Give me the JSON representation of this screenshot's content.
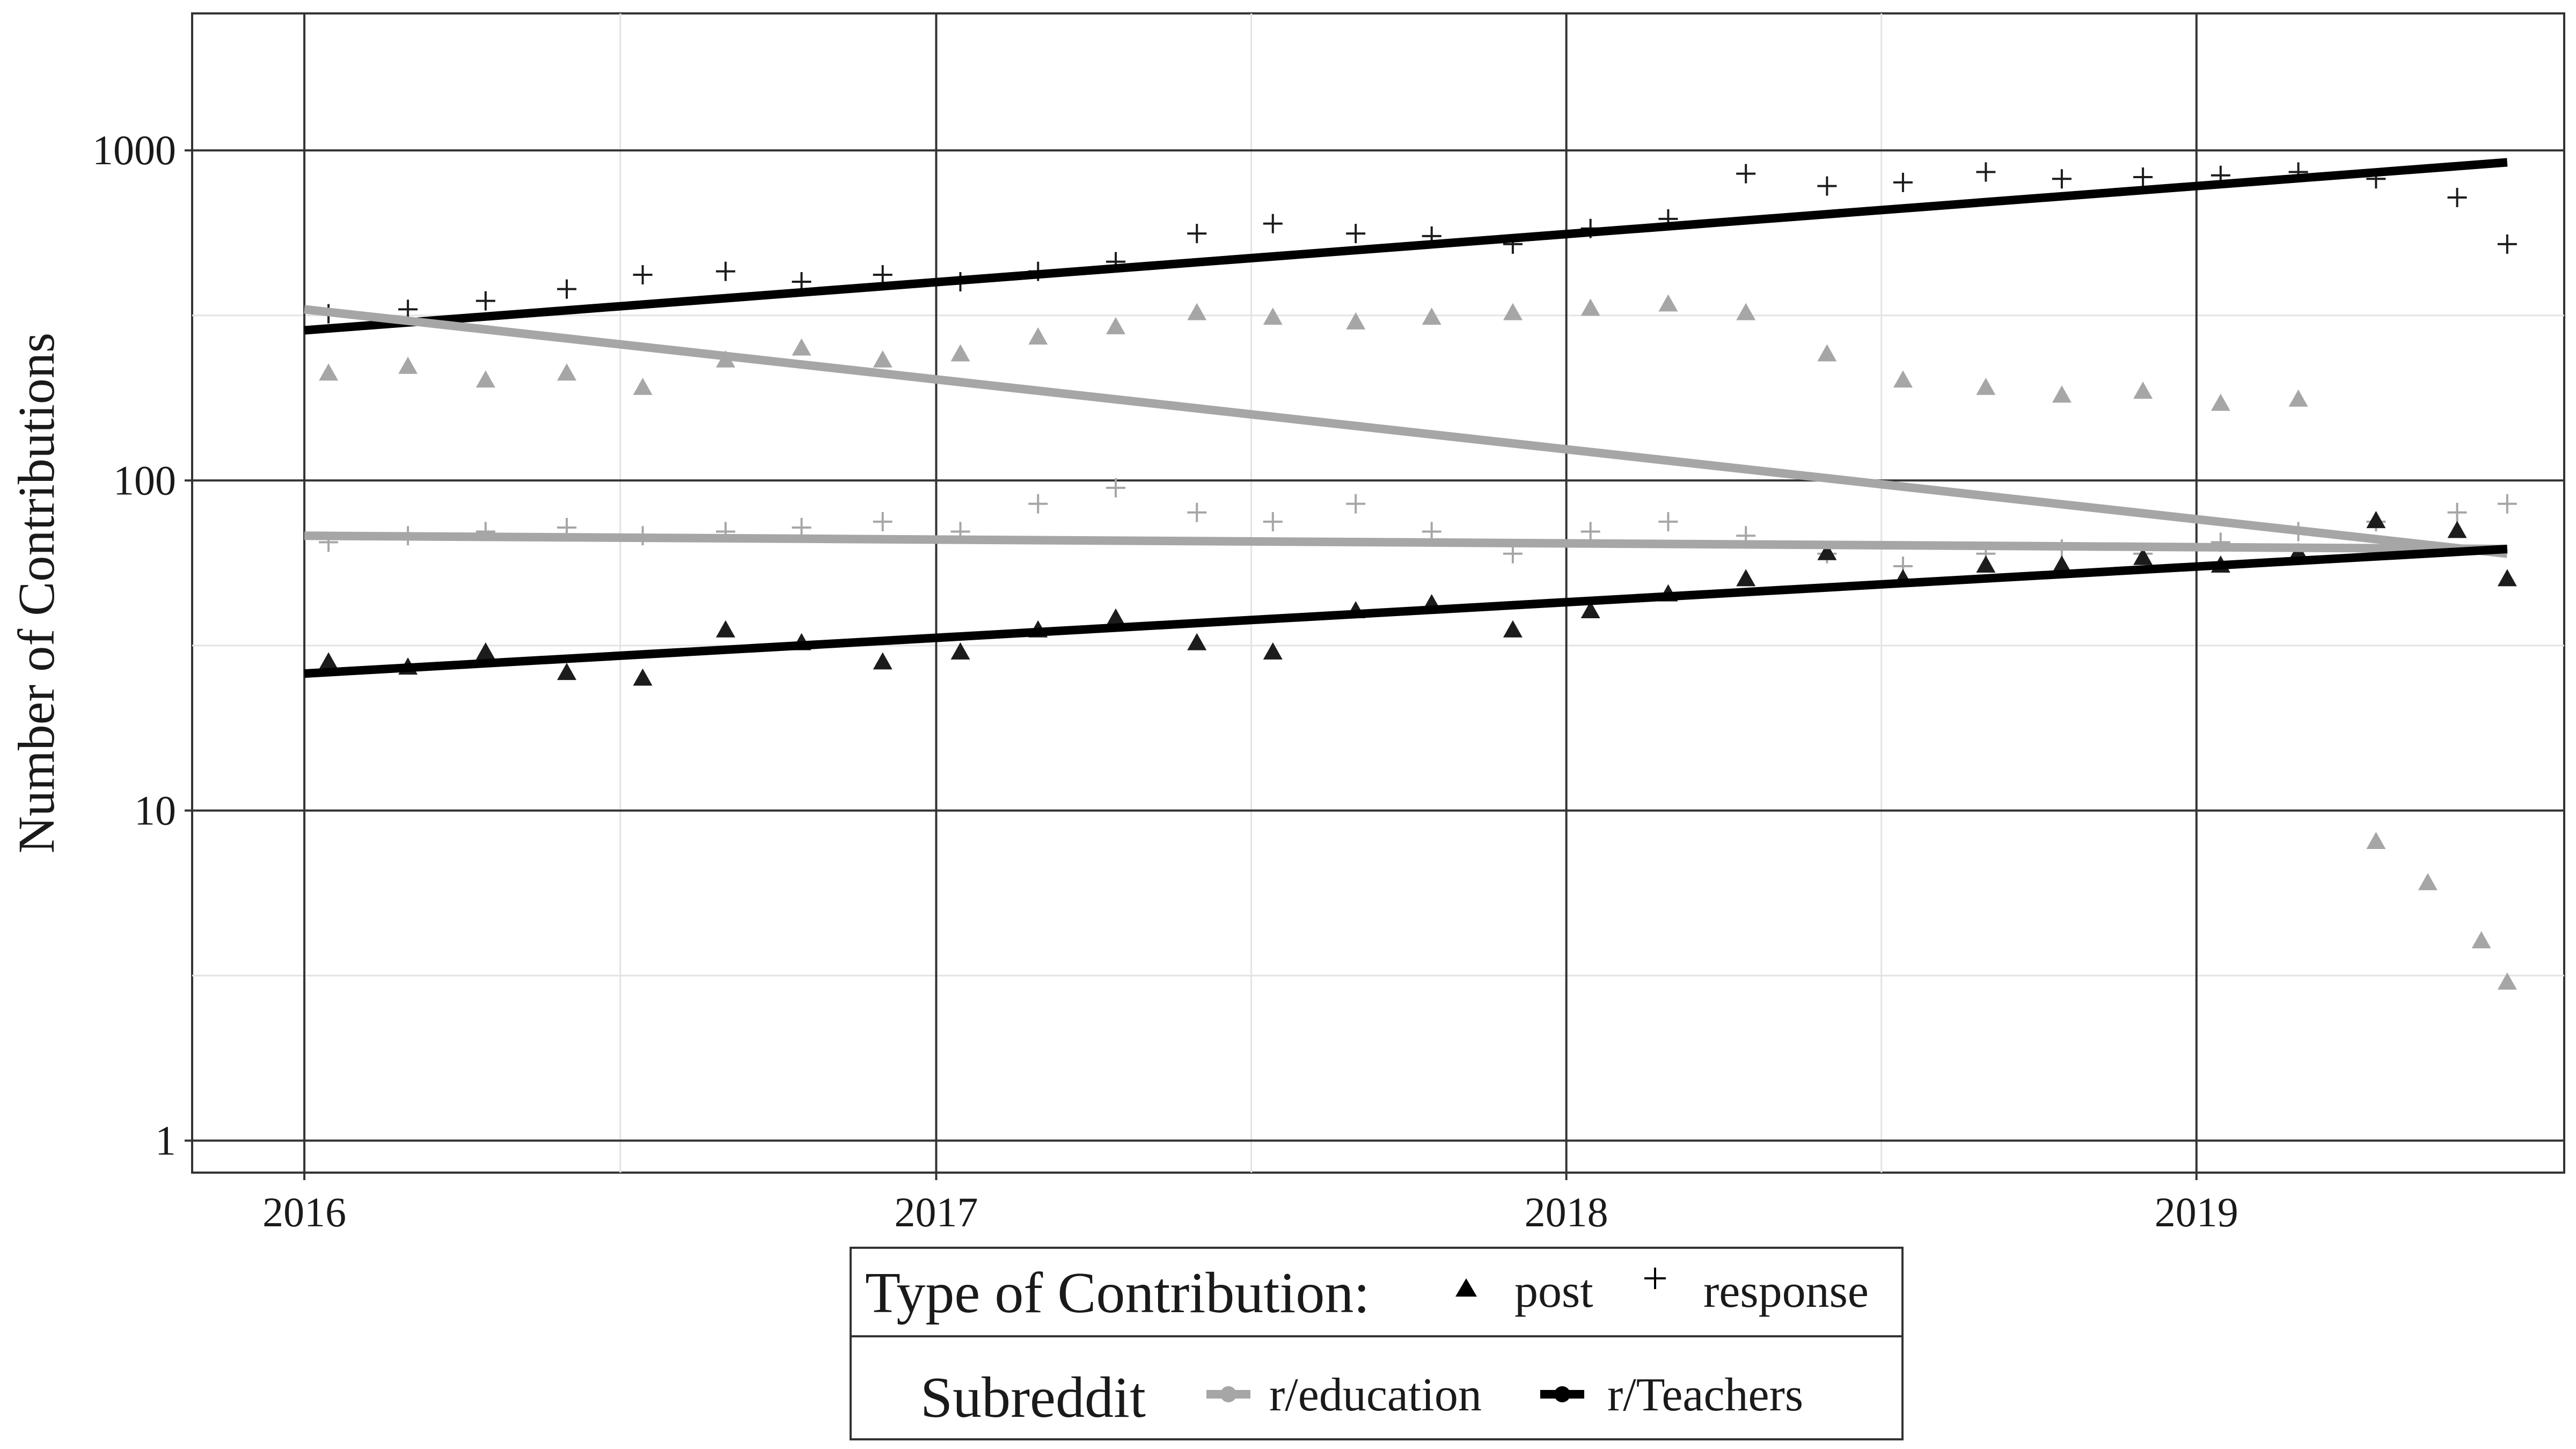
{
  "chart_data": {
    "type": "scatter",
    "title": "",
    "xlabel": "",
    "ylabel": "Number of Contributions",
    "y_scale": "log10",
    "ylim": [
      0.8,
      2600
    ],
    "xlim": [
      "2015-10-28",
      "2019-08-02"
    ],
    "grid": "on",
    "legend_position": "bottom",
    "x_ticks": [
      {
        "value": "2016-01-01",
        "label": "2016"
      },
      {
        "value": "2017-01-01",
        "label": "2017"
      },
      {
        "value": "2018-01-01",
        "label": "2018"
      },
      {
        "value": "2019-01-01",
        "label": "2019"
      }
    ],
    "y_ticks": [
      {
        "value": 1,
        "label": "1"
      },
      {
        "value": 10,
        "label": "10"
      },
      {
        "value": 100,
        "label": "100"
      },
      {
        "value": 1000,
        "label": "1000"
      }
    ],
    "legend": {
      "type_title": "Type of Contribution:",
      "type_items": [
        {
          "label": "post",
          "shape": "triangle"
        },
        {
          "label": "response",
          "shape": "plus"
        }
      ],
      "subreddit_title": "Subreddit",
      "subreddit_items": [
        {
          "label": "r/education",
          "color": "#a6a6a6"
        },
        {
          "label": "r/Teachers",
          "color": "#000000"
        }
      ]
    },
    "series": [
      {
        "name": "r/Teachers response",
        "subreddit": "r/Teachers",
        "contribution": "response",
        "shape": "plus",
        "color": "#000000",
        "x": [
          "2016-01-15",
          "2016-03-01",
          "2016-04-15",
          "2016-06-01",
          "2016-07-15",
          "2016-09-01",
          "2016-10-15",
          "2016-12-01",
          "2017-01-15",
          "2017-03-01",
          "2017-04-15",
          "2017-06-01",
          "2017-07-15",
          "2017-09-01",
          "2017-10-15",
          "2017-12-01",
          "2018-01-15",
          "2018-03-01",
          "2018-04-15",
          "2018-06-01",
          "2018-07-15",
          "2018-09-01",
          "2018-10-15",
          "2018-12-01",
          "2019-01-15",
          "2019-03-01",
          "2019-04-15",
          "2019-06-01",
          "2019-06-30"
        ],
        "y": [
          320,
          330,
          350,
          380,
          420,
          430,
          400,
          420,
          400,
          430,
          460,
          560,
          600,
          560,
          550,
          520,
          580,
          620,
          850,
          780,
          800,
          860,
          820,
          830,
          840,
          860,
          820,
          720,
          520
        ],
        "trend": {
          "x": [
            "2016-01-01",
            "2019-06-30"
          ],
          "y": [
            285,
            920
          ]
        }
      },
      {
        "name": "r/education post",
        "subreddit": "r/education",
        "contribution": "post",
        "shape": "triangle",
        "color": "#a6a6a6",
        "x": [
          "2016-01-15",
          "2016-03-01",
          "2016-04-15",
          "2016-06-01",
          "2016-07-15",
          "2016-09-01",
          "2016-10-15",
          "2016-12-01",
          "2017-01-15",
          "2017-03-01",
          "2017-04-15",
          "2017-06-01",
          "2017-07-15",
          "2017-09-01",
          "2017-10-15",
          "2017-12-01",
          "2018-01-15",
          "2018-03-01",
          "2018-04-15",
          "2018-06-01",
          "2018-07-15",
          "2018-09-01",
          "2018-10-15",
          "2018-12-01",
          "2019-01-15",
          "2019-03-01",
          "2019-04-15",
          "2019-05-15",
          "2019-06-15",
          "2019-06-30"
        ],
        "y": [
          210,
          220,
          200,
          210,
          190,
          230,
          250,
          230,
          240,
          270,
          290,
          320,
          310,
          300,
          310,
          320,
          330,
          340,
          320,
          240,
          200,
          190,
          180,
          185,
          170,
          175,
          8,
          6,
          4,
          3
        ],
        "trend": {
          "x": [
            "2016-01-01",
            "2019-06-30"
          ],
          "y": [
            330,
            60
          ]
        }
      },
      {
        "name": "r/education response",
        "subreddit": "r/education",
        "contribution": "response",
        "shape": "plus",
        "color": "#a6a6a6",
        "x": [
          "2016-01-15",
          "2016-03-01",
          "2016-04-15",
          "2016-06-01",
          "2016-07-15",
          "2016-09-01",
          "2016-10-15",
          "2016-12-01",
          "2017-01-15",
          "2017-03-01",
          "2017-04-15",
          "2017-06-01",
          "2017-07-15",
          "2017-09-01",
          "2017-10-15",
          "2017-12-01",
          "2018-01-15",
          "2018-03-01",
          "2018-04-15",
          "2018-06-01",
          "2018-07-15",
          "2018-09-01",
          "2018-10-15",
          "2018-12-01",
          "2019-01-15",
          "2019-03-01",
          "2019-04-15",
          "2019-06-01",
          "2019-06-30"
        ],
        "y": [
          65,
          68,
          70,
          72,
          68,
          70,
          72,
          75,
          70,
          85,
          95,
          80,
          75,
          85,
          70,
          60,
          70,
          75,
          68,
          60,
          55,
          60,
          62,
          60,
          65,
          70,
          75,
          80,
          85
        ],
        "trend": {
          "x": [
            "2016-01-01",
            "2019-06-30"
          ],
          "y": [
            68,
            62
          ]
        }
      },
      {
        "name": "r/Teachers post",
        "subreddit": "r/Teachers",
        "contribution": "post",
        "shape": "triangle",
        "color": "#000000",
        "x": [
          "2016-01-15",
          "2016-03-01",
          "2016-04-15",
          "2016-06-01",
          "2016-07-15",
          "2016-09-01",
          "2016-10-15",
          "2016-12-01",
          "2017-01-15",
          "2017-03-01",
          "2017-04-15",
          "2017-06-01",
          "2017-07-15",
          "2017-09-01",
          "2017-10-15",
          "2017-12-01",
          "2018-01-15",
          "2018-03-01",
          "2018-04-15",
          "2018-06-01",
          "2018-07-15",
          "2018-09-01",
          "2018-10-15",
          "2018-12-01",
          "2019-01-15",
          "2019-03-01",
          "2019-04-15",
          "2019-06-01",
          "2019-06-30"
        ],
        "y": [
          28,
          27,
          30,
          26,
          25,
          35,
          32,
          28,
          30,
          35,
          38,
          32,
          30,
          40,
          42,
          35,
          40,
          45,
          50,
          60,
          50,
          55,
          55,
          58,
          55,
          60,
          75,
          70,
          50
        ],
        "trend": {
          "x": [
            "2016-01-01",
            "2019-06-30"
          ],
          "y": [
            26,
            62
          ]
        }
      }
    ]
  }
}
